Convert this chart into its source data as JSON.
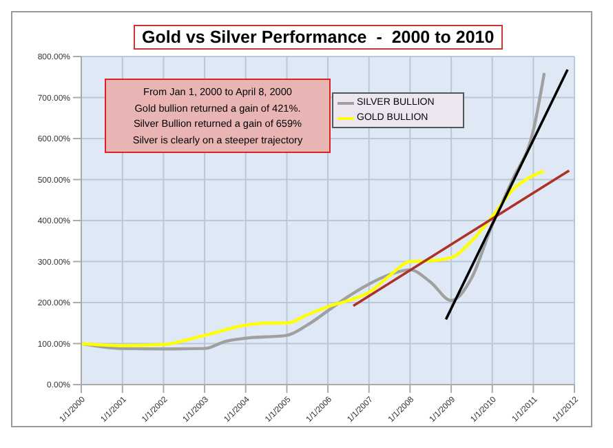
{
  "chart_data": {
    "type": "line",
    "title": "Gold vs Silver Performance  -  2000 to 2010",
    "annotations": [
      "From Jan 1, 2000 to April 8, 2000",
      "Gold bullion returned a gain of 421%.",
      "Silver Bullion returned a gain of 659%",
      "Silver is clearly on a steeper trajectory"
    ],
    "series": [
      {
        "name": "SILVER BULLION",
        "color": "#a0a0a0",
        "x": [
          "2000-01-01",
          "2001-01-01",
          "2002-01-01",
          "2003-01-01",
          "2003-07-01",
          "2004-01-01",
          "2005-01-01",
          "2005-07-01",
          "2006-01-01",
          "2006-07-01",
          "2007-01-01",
          "2007-07-01",
          "2008-01-01",
          "2008-07-01",
          "2009-01-01",
          "2009-07-01",
          "2010-01-01",
          "2010-07-01",
          "2011-01-01",
          "2011-04-08"
        ],
        "values": [
          100,
          88,
          87,
          88,
          105,
          113,
          120,
          145,
          180,
          215,
          245,
          268,
          280,
          250,
          205,
          260,
          390,
          500,
          620,
          760
        ]
      },
      {
        "name": "GOLD BULLION",
        "color": "#ffff00",
        "x": [
          "2000-01-01",
          "2001-01-01",
          "2002-01-01",
          "2003-01-01",
          "2004-01-01",
          "2004-07-01",
          "2005-01-01",
          "2005-07-01",
          "2006-01-01",
          "2006-07-01",
          "2007-01-01",
          "2007-07-01",
          "2008-01-01",
          "2008-07-01",
          "2009-01-01",
          "2009-07-01",
          "2010-01-01",
          "2010-07-01",
          "2011-01-01",
          "2011-04-08"
        ],
        "values": [
          100,
          95,
          98,
          120,
          145,
          150,
          150,
          170,
          190,
          205,
          225,
          265,
          300,
          302,
          310,
          350,
          410,
          475,
          510,
          521
        ]
      },
      {
        "type": "line",
        "color": "#b03028",
        "x": [
          "2006-08-15",
          "2011-11-15"
        ],
        "values": [
          192,
          522
        ]
      },
      {
        "type": "line",
        "color": "#000000",
        "x": [
          "2008-11-15",
          "2011-11-01"
        ],
        "values": [
          159,
          768
        ]
      }
    ],
    "xlim": [
      "2000-01-01",
      "2012-01-01"
    ],
    "xticks": [
      {
        "value": "2000-01-01",
        "label": "1/1/2000"
      },
      {
        "value": "2001-01-01",
        "label": "1/1/2001"
      },
      {
        "value": "2002-01-01",
        "label": "1/1/2002"
      },
      {
        "value": "2003-01-01",
        "label": "1/1/2003"
      },
      {
        "value": "2004-01-01",
        "label": "1/1/2004"
      },
      {
        "value": "2005-01-01",
        "label": "1/1/2005"
      },
      {
        "value": "2006-01-01",
        "label": "1/1/2006"
      },
      {
        "value": "2007-01-01",
        "label": "1/1/2007"
      },
      {
        "value": "2008-01-01",
        "label": "1/1/2008"
      },
      {
        "value": "2009-01-01",
        "label": "1/1/2009"
      },
      {
        "value": "2010-01-01",
        "label": "1/1/2010"
      },
      {
        "value": "2011-01-01",
        "label": "1/1/2011"
      },
      {
        "value": "2012-01-01",
        "label": "1/1/2012"
      }
    ],
    "ylim": [
      0,
      800
    ],
    "yticks": [
      {
        "value": 0,
        "label": "0.00%"
      },
      {
        "value": 100,
        "label": "100.00%"
      },
      {
        "value": 200,
        "label": "200.00%"
      },
      {
        "value": 300,
        "label": "300.00%"
      },
      {
        "value": 400,
        "label": "400.00%"
      },
      {
        "value": 500,
        "label": "500.00%"
      },
      {
        "value": 600,
        "label": "600.00%"
      },
      {
        "value": 700,
        "label": "700.00%"
      },
      {
        "value": 800,
        "label": "800.00%"
      }
    ],
    "grid": true,
    "legend": "top",
    "marker": "none",
    "line_style": "solid"
  }
}
